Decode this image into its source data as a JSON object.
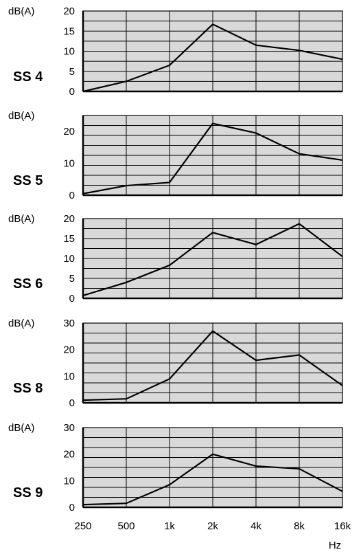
{
  "chart_data": [
    {
      "type": "line",
      "y_unit_label": "dB(A)",
      "panel_label": "SS 4",
      "ylim": [
        0,
        20
      ],
      "y_tick_labels": [
        "0",
        "5",
        "10",
        "15",
        "20"
      ],
      "x": [
        "250",
        "500",
        "1k",
        "2k",
        "4k",
        "8k",
        "16k"
      ],
      "values": [
        0,
        2.5,
        6.5,
        16.7,
        11.5,
        10.2,
        8
      ]
    },
    {
      "type": "line",
      "y_unit_label": "dB(A)",
      "panel_label": "SS 5",
      "ylim": [
        0,
        25
      ],
      "y_tick_labels": [
        "0",
        "10",
        "20"
      ],
      "x": [
        "250",
        "500",
        "1k",
        "2k",
        "4k",
        "8k",
        "16k"
      ],
      "values": [
        0.5,
        3,
        4,
        22.5,
        19.5,
        13,
        11
      ]
    },
    {
      "type": "line",
      "y_unit_label": "dB(A)",
      "panel_label": "SS 6",
      "ylim": [
        0,
        20
      ],
      "y_tick_labels": [
        "0",
        "5",
        "10",
        "15",
        "20"
      ],
      "x": [
        "250",
        "500",
        "1k",
        "2k",
        "4k",
        "8k",
        "16k"
      ],
      "values": [
        0.7,
        4,
        8.3,
        16.5,
        13.5,
        18.7,
        10.5
      ]
    },
    {
      "type": "line",
      "y_unit_label": "dB(A)",
      "panel_label": "SS 8",
      "ylim": [
        0,
        30
      ],
      "y_tick_labels": [
        "0",
        "10",
        "20",
        "30"
      ],
      "x": [
        "250",
        "500",
        "1k",
        "2k",
        "4k",
        "8k",
        "16k"
      ],
      "values": [
        1,
        1.5,
        9,
        27,
        16,
        18,
        6.5
      ]
    },
    {
      "type": "line",
      "y_unit_label": "dB(A)",
      "panel_label": "SS 9",
      "ylim": [
        0,
        30
      ],
      "y_tick_labels": [
        "0",
        "10",
        "20",
        "30"
      ],
      "x": [
        "250",
        "500",
        "1k",
        "2k",
        "4k",
        "8k",
        "16k"
      ],
      "values": [
        1,
        1.5,
        8.5,
        20,
        15.5,
        14.5,
        6
      ]
    }
  ],
  "x_tick_labels": [
    "250",
    "500",
    "1k",
    "2k",
    "4k",
    "8k",
    "16k"
  ],
  "x_unit_label": "Hz",
  "colors": {
    "plot_background": "#d9d9d9",
    "grid": "#000000",
    "line": "#000000"
  }
}
